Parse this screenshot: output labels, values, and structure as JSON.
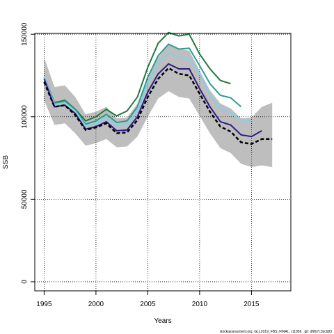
{
  "chart_data": {
    "type": "line",
    "xlabel": "Years",
    "ylabel": "SSB",
    "footer": "stockassessment.org, GLL2019_FBS_FINAL, r11956 , git: df0b7c1bcb83",
    "x": [
      1995,
      1996,
      1997,
      1998,
      1999,
      2000,
      2001,
      2002,
      2003,
      2004,
      2005,
      2006,
      2007,
      2008,
      2009,
      2010,
      2011,
      2012,
      2013,
      2014,
      2015,
      2016,
      2017
    ],
    "xlim": [
      1994.1,
      2018.8
    ],
    "xticks": [
      1995,
      2000,
      2005,
      2010,
      2015
    ],
    "ylim": [
      -5500,
      150500
    ],
    "yticks": [
      0,
      50000,
      100000,
      150000
    ],
    "grid": true,
    "band": {
      "color": "#bebebe",
      "upper": [
        136000,
        118000,
        119000,
        112000,
        101500,
        103000,
        106000,
        99000,
        99500,
        108000,
        124000,
        136000,
        144000,
        141000,
        140000,
        128000,
        116000,
        108000,
        105000,
        99000,
        99500,
        106000,
        108500
      ],
      "lower": [
        110000,
        95000,
        96000,
        90000,
        82500,
        84000,
        86500,
        81500,
        82000,
        88000,
        100000,
        111000,
        115500,
        112000,
        111000,
        100500,
        90000,
        81000,
        78000,
        71500,
        69500,
        70500,
        69500
      ]
    },
    "series": [
      {
        "color": "#1b7a3e",
        "values": [
          124000,
          108500,
          110000,
          104500,
          97500,
          100000,
          104500,
          100500,
          103500,
          112000,
          130000,
          144500,
          151000,
          149000,
          150000,
          138000,
          129000,
          122000,
          120000,
          null,
          null,
          null,
          null
        ]
      },
      {
        "color": "#2a9d8f",
        "values": [
          124000,
          108000,
          109500,
          104000,
          95500,
          97500,
          101500,
          96500,
          97500,
          106000,
          124000,
          137000,
          144000,
          141000,
          141500,
          131000,
          120000,
          113000,
          111500,
          106000,
          null,
          null,
          null
        ]
      },
      {
        "color": "#87ceeb",
        "values": [
          124000,
          107500,
          108500,
          103500,
          94500,
          96000,
          100000,
          94500,
          95500,
          104000,
          121000,
          132500,
          138500,
          136000,
          135000,
          126000,
          113000,
          105000,
          102500,
          98000,
          97500,
          null,
          null
        ]
      },
      {
        "color": "#2e1a87",
        "values": [
          123000,
          106000,
          107000,
          102000,
          92500,
          94000,
          97000,
          91500,
          92000,
          100000,
          115000,
          126000,
          132000,
          129000,
          129000,
          117000,
          106000,
          97000,
          95000,
          89000,
          88000,
          91500,
          null
        ]
      },
      {
        "color": "#000000",
        "dashed": true,
        "values": [
          121000,
          106000,
          107000,
          101000,
          92000,
          93500,
          96000,
          90000,
          90500,
          98000,
          112000,
          123000,
          129500,
          126000,
          125000,
          114000,
          103000,
          94000,
          91000,
          84500,
          83500,
          86500,
          86500
        ]
      }
    ]
  }
}
